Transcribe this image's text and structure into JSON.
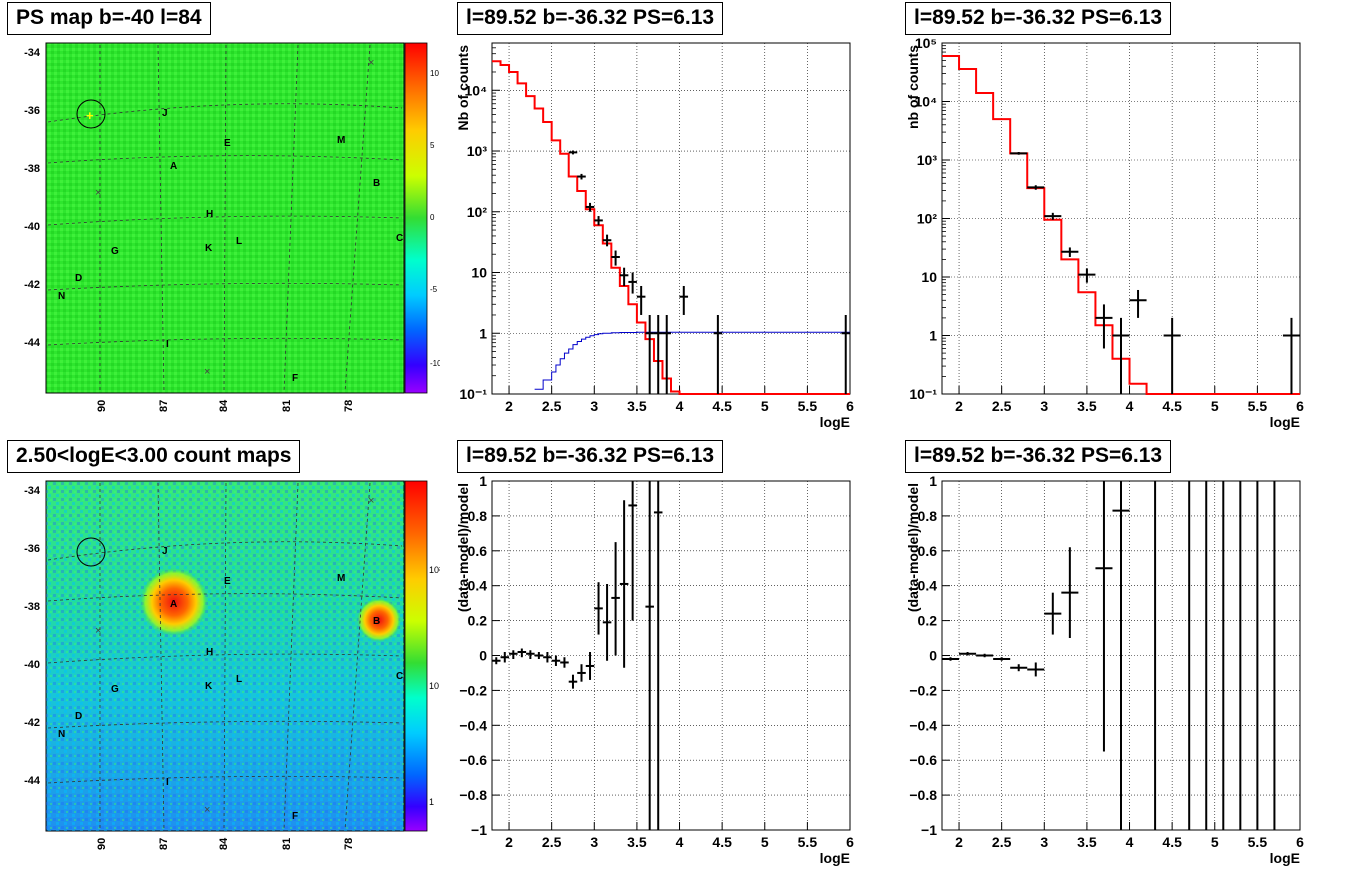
{
  "panels": {
    "map_top_title": "PS map b=-40 l=84",
    "map_bottom_title": "2.50<logE<3.00 count maps",
    "spec_title": "l=89.52 b=-36.32 PS=6.13"
  },
  "map_axes": {
    "y_ticks": [
      "-34",
      "-36",
      "-38",
      "-40",
      "-42",
      "-44"
    ],
    "x_ticks": [
      "90",
      "87",
      "84",
      "81",
      "78"
    ]
  },
  "map_top_colorbar": {
    "ticks": [
      "10",
      "5",
      "0",
      "-5",
      "-10"
    ]
  },
  "map_bottom_colorbar": {
    "ticks": [
      "10²",
      "10",
      "1"
    ]
  },
  "source_labels": [
    "J",
    "E",
    "M",
    "A",
    "B",
    "H",
    "L",
    "K",
    "G",
    "C",
    "D",
    "N",
    "I",
    "F"
  ],
  "colors": {
    "model": "#ff0000",
    "data": "#000000",
    "bkg": "#0000cc"
  },
  "chart_data": [
    {
      "type": "line",
      "title": "l=89.52 b=-36.32 PS=6.13",
      "xlabel": "logE",
      "ylabel": "Nb of counts",
      "log_y": true,
      "xlim": [
        1.8,
        6
      ],
      "ylim": [
        0.1,
        60000
      ],
      "x_ticks": [
        "2",
        "2.5",
        "3",
        "3.5",
        "4",
        "4.5",
        "5",
        "5.5",
        "6"
      ],
      "y_ticks": [
        "10⁻¹",
        "1",
        "10",
        "10²",
        "10³",
        "10⁴"
      ],
      "grid": true,
      "step_edges": [
        1.8,
        1.9,
        2.0,
        2.1,
        2.2,
        2.3,
        2.4,
        2.5,
        2.6,
        2.7,
        2.8,
        2.9,
        3.0,
        3.1,
        3.2,
        3.3,
        3.4,
        3.5,
        3.6,
        3.7,
        3.8,
        3.9,
        4.0,
        6.0
      ],
      "model_values": [
        30000,
        26000,
        20000,
        13000,
        8000,
        5000,
        3000,
        1500,
        900,
        380,
        220,
        110,
        60,
        30,
        12,
        6,
        3,
        1.5,
        0.8,
        0.35,
        0.18,
        0.11,
        0.1
      ],
      "bkg_edges": [
        2.3,
        2.4,
        2.5,
        2.55,
        2.6,
        2.65,
        2.7,
        2.75,
        2.8,
        2.85,
        2.9,
        2.95,
        3.0,
        3.05,
        3.1,
        3.2,
        3.3,
        3.5,
        6.0
      ],
      "bkg_values": [
        0.12,
        0.17,
        0.23,
        0.3,
        0.38,
        0.47,
        0.55,
        0.65,
        0.73,
        0.8,
        0.86,
        0.91,
        0.95,
        0.98,
        1.0,
        1.02,
        1.03,
        1.04
      ],
      "points": [
        {
          "x": 2.75,
          "y": 950,
          "xe": 0.05,
          "lo": 880,
          "hi": 1020
        },
        {
          "x": 2.85,
          "y": 380,
          "xe": 0.05,
          "lo": 340,
          "hi": 420
        },
        {
          "x": 2.95,
          "y": 120,
          "xe": 0.05,
          "lo": 100,
          "hi": 140
        },
        {
          "x": 3.05,
          "y": 72,
          "xe": 0.05,
          "lo": 60,
          "hi": 85
        },
        {
          "x": 3.15,
          "y": 34,
          "xe": 0.05,
          "lo": 27,
          "hi": 42
        },
        {
          "x": 3.25,
          "y": 18,
          "xe": 0.05,
          "lo": 13,
          "hi": 23
        },
        {
          "x": 3.35,
          "y": 9,
          "xe": 0.05,
          "lo": 6,
          "hi": 12
        },
        {
          "x": 3.45,
          "y": 7,
          "xe": 0.05,
          "lo": 4.5,
          "hi": 10
        },
        {
          "x": 3.55,
          "y": 4,
          "xe": 0.05,
          "lo": 2,
          "hi": 6
        },
        {
          "x": 3.65,
          "y": 1,
          "xe": 0.05,
          "lo": 0.1,
          "hi": 2
        },
        {
          "x": 3.75,
          "y": 1,
          "xe": 0.05,
          "lo": 0.1,
          "hi": 2
        },
        {
          "x": 3.85,
          "y": 1,
          "xe": 0.05,
          "lo": 0.1,
          "hi": 2
        },
        {
          "x": 4.05,
          "y": 4,
          "xe": 0.05,
          "lo": 2,
          "hi": 6
        },
        {
          "x": 4.45,
          "y": 1,
          "xe": 0.05,
          "lo": 0.1,
          "hi": 2
        },
        {
          "x": 5.95,
          "y": 1,
          "xe": 0.05,
          "lo": 0.1,
          "hi": 2
        }
      ]
    },
    {
      "type": "line",
      "title": "l=89.52 b=-36.32 PS=6.13",
      "xlabel": "logE",
      "ylabel": "nb of counts",
      "log_y": true,
      "xlim": [
        1.8,
        6
      ],
      "ylim": [
        0.1,
        100000
      ],
      "x_ticks": [
        "2",
        "2.5",
        "3",
        "3.5",
        "4",
        "4.5",
        "5",
        "5.5",
        "6"
      ],
      "y_ticks": [
        "10⁻¹",
        "1",
        "10",
        "10²",
        "10³",
        "10⁴",
        "10⁵"
      ],
      "grid": true,
      "step_edges": [
        1.8,
        2.0,
        2.2,
        2.4,
        2.6,
        2.8,
        3.0,
        3.2,
        3.4,
        3.6,
        3.8,
        4.0,
        4.2,
        6.0
      ],
      "model_values": [
        60000,
        36000,
        14000,
        5000,
        1300,
        330,
        95,
        20,
        5.5,
        1.5,
        0.4,
        0.15,
        0.1
      ],
      "points": [
        {
          "x": 2.7,
          "y": 1300,
          "xe": 0.1,
          "lo": 1230,
          "hi": 1370
        },
        {
          "x": 2.9,
          "y": 340,
          "xe": 0.1,
          "lo": 310,
          "hi": 370
        },
        {
          "x": 3.1,
          "y": 110,
          "xe": 0.1,
          "lo": 95,
          "hi": 125
        },
        {
          "x": 3.3,
          "y": 27,
          "xe": 0.1,
          "lo": 22,
          "hi": 32
        },
        {
          "x": 3.5,
          "y": 11,
          "xe": 0.1,
          "lo": 8,
          "hi": 14
        },
        {
          "x": 3.7,
          "y": 2,
          "xe": 0.1,
          "lo": 0.6,
          "hi": 3.4
        },
        {
          "x": 3.9,
          "y": 1,
          "xe": 0.1,
          "lo": 0.1,
          "hi": 2
        },
        {
          "x": 4.1,
          "y": 4,
          "xe": 0.1,
          "lo": 2,
          "hi": 6
        },
        {
          "x": 4.5,
          "y": 1,
          "xe": 0.1,
          "lo": 0.1,
          "hi": 2
        },
        {
          "x": 5.9,
          "y": 1,
          "xe": 0.1,
          "lo": 0.1,
          "hi": 2
        }
      ]
    },
    {
      "type": "scatter",
      "title": "l=89.52 b=-36.32 PS=6.13",
      "xlabel": "logE",
      "ylabel": "(data-model)/model",
      "log_y": false,
      "xlim": [
        1.8,
        6
      ],
      "ylim": [
        -1,
        1
      ],
      "x_ticks": [
        "2",
        "2.5",
        "3",
        "3.5",
        "4",
        "4.5",
        "5",
        "5.5",
        "6"
      ],
      "y_ticks": [
        "−1",
        "−0.8",
        "−0.6",
        "−0.4",
        "−0.2",
        "0",
        "0.2",
        "0.4",
        "0.6",
        "0.8",
        "1"
      ],
      "grid": true,
      "points": [
        {
          "x": 1.85,
          "y": -0.03,
          "xe": 0.05,
          "lo": -0.05,
          "hi": -0.01
        },
        {
          "x": 1.95,
          "y": -0.01,
          "xe": 0.05,
          "lo": -0.04,
          "hi": 0.02
        },
        {
          "x": 2.05,
          "y": 0.01,
          "xe": 0.05,
          "lo": -0.02,
          "hi": 0.03
        },
        {
          "x": 2.15,
          "y": 0.02,
          "xe": 0.05,
          "lo": -0.01,
          "hi": 0.04
        },
        {
          "x": 2.25,
          "y": 0.01,
          "xe": 0.05,
          "lo": -0.02,
          "hi": 0.03
        },
        {
          "x": 2.35,
          "y": 0.0,
          "xe": 0.05,
          "lo": -0.02,
          "hi": 0.02
        },
        {
          "x": 2.45,
          "y": -0.01,
          "xe": 0.05,
          "lo": -0.04,
          "hi": 0.02
        },
        {
          "x": 2.55,
          "y": -0.03,
          "xe": 0.05,
          "lo": -0.06,
          "hi": 0.0
        },
        {
          "x": 2.65,
          "y": -0.04,
          "xe": 0.05,
          "lo": -0.07,
          "hi": -0.01
        },
        {
          "x": 2.75,
          "y": -0.15,
          "xe": 0.05,
          "lo": -0.19,
          "hi": -0.11
        },
        {
          "x": 2.85,
          "y": -0.1,
          "xe": 0.05,
          "lo": -0.15,
          "hi": -0.05
        },
        {
          "x": 2.95,
          "y": -0.06,
          "xe": 0.05,
          "lo": -0.14,
          "hi": 0.02
        },
        {
          "x": 3.05,
          "y": 0.27,
          "xe": 0.05,
          "lo": 0.12,
          "hi": 0.42
        },
        {
          "x": 3.15,
          "y": 0.19,
          "xe": 0.05,
          "lo": -0.03,
          "hi": 0.41
        },
        {
          "x": 3.25,
          "y": 0.33,
          "xe": 0.05,
          "lo": 0.0,
          "hi": 0.65
        },
        {
          "x": 3.35,
          "y": 0.41,
          "xe": 0.05,
          "lo": -0.07,
          "hi": 0.89
        },
        {
          "x": 3.45,
          "y": 0.86,
          "xe": 0.05,
          "lo": 0.2,
          "hi": 1.0
        },
        {
          "x": 3.65,
          "y": 0.28,
          "xe": 0.05,
          "lo": -1.0,
          "hi": 1.0
        },
        {
          "x": 3.75,
          "y": 0.82,
          "xe": 0.05,
          "lo": -1.0,
          "hi": 1.0
        }
      ]
    },
    {
      "type": "scatter",
      "title": "l=89.52 b=-36.32 PS=6.13",
      "xlabel": "logE",
      "ylabel": "(data-model)/model",
      "log_y": false,
      "xlim": [
        1.8,
        6
      ],
      "ylim": [
        -1,
        1
      ],
      "x_ticks": [
        "2",
        "2.5",
        "3",
        "3.5",
        "4",
        "4.5",
        "5",
        "5.5",
        "6"
      ],
      "y_ticks": [
        "−1",
        "−0.8",
        "−0.6",
        "−0.4",
        "−0.2",
        "0",
        "0.2",
        "0.4",
        "0.6",
        "0.8",
        "1"
      ],
      "grid": true,
      "points": [
        {
          "x": 1.9,
          "y": -0.02,
          "xe": 0.1,
          "lo": -0.03,
          "hi": -0.01
        },
        {
          "x": 2.1,
          "y": 0.01,
          "xe": 0.1,
          "lo": 0.0,
          "hi": 0.02
        },
        {
          "x": 2.3,
          "y": 0.0,
          "xe": 0.1,
          "lo": -0.01,
          "hi": 0.01
        },
        {
          "x": 2.5,
          "y": -0.02,
          "xe": 0.1,
          "lo": -0.03,
          "hi": -0.01
        },
        {
          "x": 2.7,
          "y": -0.07,
          "xe": 0.1,
          "lo": -0.09,
          "hi": -0.05
        },
        {
          "x": 2.9,
          "y": -0.08,
          "xe": 0.1,
          "lo": -0.12,
          "hi": -0.04
        },
        {
          "x": 3.1,
          "y": 0.24,
          "xe": 0.1,
          "lo": 0.12,
          "hi": 0.36
        },
        {
          "x": 3.3,
          "y": 0.36,
          "xe": 0.1,
          "lo": 0.1,
          "hi": 0.62
        },
        {
          "x": 3.7,
          "y": 0.5,
          "xe": 0.1,
          "lo": -0.55,
          "hi": 1.0
        },
        {
          "x": 3.9,
          "y": 0.83,
          "xe": 0.1,
          "lo": -1.0,
          "hi": 1.0
        },
        {
          "x": 4.3,
          "y": null,
          "xe": 0,
          "lo": -1.0,
          "hi": 1.0
        },
        {
          "x": 4.7,
          "y": null,
          "xe": 0,
          "lo": -1.0,
          "hi": 1.0
        },
        {
          "x": 4.9,
          "y": null,
          "xe": 0,
          "lo": -1.0,
          "hi": 1.0
        },
        {
          "x": 5.1,
          "y": null,
          "xe": 0,
          "lo": -1.0,
          "hi": 1.0
        },
        {
          "x": 5.3,
          "y": null,
          "xe": 0,
          "lo": -1.0,
          "hi": 1.0
        },
        {
          "x": 5.5,
          "y": null,
          "xe": 0,
          "lo": -1.0,
          "hi": 1.0
        },
        {
          "x": 5.7,
          "y": null,
          "xe": 0,
          "lo": -1.0,
          "hi": 1.0
        }
      ]
    }
  ]
}
